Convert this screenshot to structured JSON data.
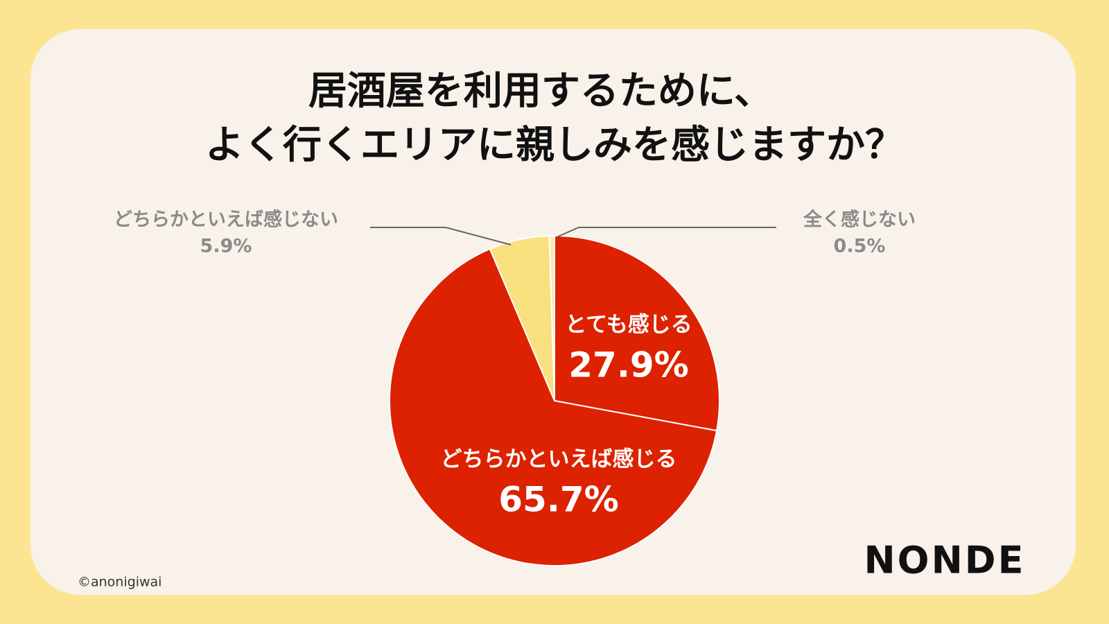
{
  "chart_data": {
    "type": "pie",
    "title": [
      "居酒屋を利用するために、",
      "よく行くエリアに親しみを感じますか？"
    ],
    "categories": [
      "とても感じる",
      "どちらかといえば感じる",
      "どちらかといえば感じない",
      "全く感じない"
    ],
    "values": [
      27.9,
      65.7,
      5.9,
      0.5
    ],
    "value_labels": [
      "27.9%",
      "65.7%",
      "5.9%",
      "0.5%"
    ],
    "colors": [
      "#dc2200",
      "#dc2200",
      "#f8e07f",
      "#f5ebb4"
    ]
  },
  "credit": "©anonigiwai",
  "logo": "NONDE"
}
